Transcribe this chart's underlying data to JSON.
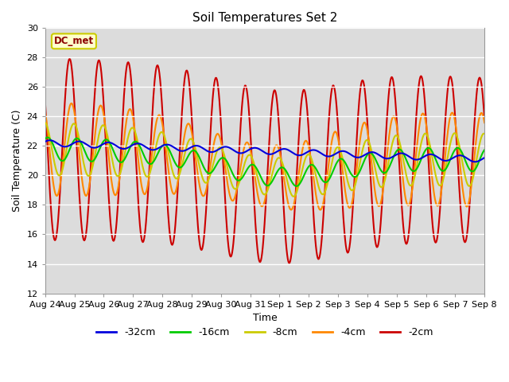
{
  "title": "Soil Temperatures Set 2",
  "xlabel": "Time",
  "ylabel": "Soil Temperature (C)",
  "ylim": [
    12,
    30
  ],
  "yticks": [
    12,
    14,
    16,
    18,
    20,
    22,
    24,
    26,
    28,
    30
  ],
  "bg_color": "#dcdcdc",
  "annotation_label": "DC_met",
  "annotation_color": "#8b0000",
  "annotation_bg": "#ffffcc",
  "x_tick_labels": [
    "Aug 24",
    "Aug 25",
    "Aug 26",
    "Aug 27",
    "Aug 28",
    "Aug 29",
    "Aug 30",
    "Aug 31",
    "Sep 1",
    "Sep 2",
    "Sep 3",
    "Sep 4",
    "Sep 5",
    "Sep 6",
    "Sep 7",
    "Sep 8"
  ],
  "legend_colors": {
    "-32cm": "#0000dd",
    "-16cm": "#00cc00",
    "-8cm": "#cccc00",
    "-4cm": "#ff8800",
    "-2cm": "#cc0000"
  },
  "legend_order": [
    "-32cm",
    "-16cm",
    "-8cm",
    "-4cm",
    "-2cm"
  ]
}
